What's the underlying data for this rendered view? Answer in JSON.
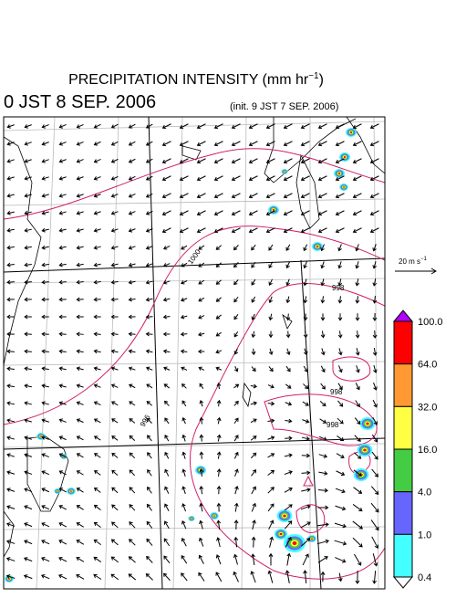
{
  "header": {
    "title": [
      "PRECIPITATION INTENSITY (mm hr",
      "−1",
      ")"
    ],
    "valid_time": "0 JST 8 SEP. 2006",
    "init_time": "(init. 9 JST 7 SEP. 2006)"
  },
  "reference_vector": {
    "label": [
      "20 m s",
      "−1"
    ]
  },
  "colorbar": {
    "colors": [
      "#b000ff",
      "#ff0000",
      "#ff9933",
      "#ffff44",
      "#44cc44",
      "#6666ff",
      "#44ffff",
      "#ffffff"
    ],
    "labels": [
      "100.0",
      "64.0",
      "32.0",
      "16.0",
      "4.0",
      "1.0",
      "0.4"
    ]
  },
  "map": {
    "contour_labels": [
      "1000",
      "998",
      "998",
      "998",
      "996"
    ]
  }
}
